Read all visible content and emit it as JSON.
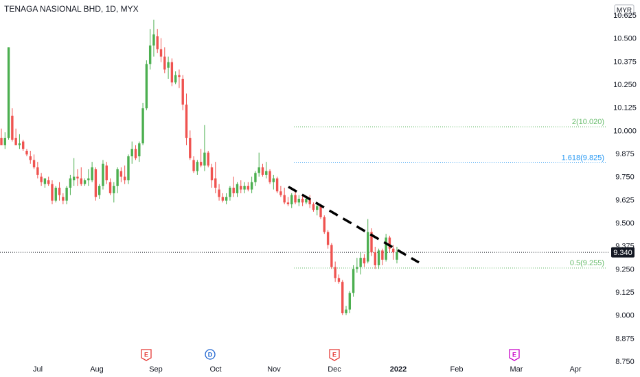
{
  "header": {
    "title": "TENAGA NASIONAL BHD, 1D, MYX"
  },
  "chart_data": {
    "type": "candlestick",
    "title": "TENAGA NASIONAL BHD, 1D, MYX",
    "currency": "MYR",
    "y_axis": {
      "min": 8.75,
      "max": 10.625,
      "ticks": [
        "10.625",
        "10.500",
        "10.375",
        "10.250",
        "10.125",
        "10.000",
        "9.875",
        "9.750",
        "9.625",
        "9.500",
        "9.375",
        "9.250",
        "9.125",
        "9.000",
        "8.875",
        "8.750"
      ]
    },
    "x_axis": {
      "labels": [
        "Jul",
        "Aug",
        "Sep",
        "Oct",
        "Nov",
        "Dec",
        "2022",
        "Feb",
        "Mar",
        "Apr"
      ],
      "bold": [
        "2022"
      ]
    },
    "last_price": {
      "value": 9.34,
      "label": "9.340",
      "color": "#131722"
    },
    "fib_levels": [
      {
        "value": 10.02,
        "label": "2(10.020)",
        "color": "#66bb6a"
      },
      {
        "value": 9.825,
        "label": "1.618(9.825)",
        "color": "#2196f3"
      },
      {
        "value": 9.255,
        "label": "0.5(9.255)",
        "color": "#66bb6a"
      }
    ],
    "trendline": {
      "start": {
        "date": "Nov 9",
        "value": 9.695
      },
      "end": {
        "date": "Jan 7",
        "value": 9.285
      },
      "style": "dashed",
      "color": "#000000"
    },
    "events": [
      {
        "date": "Aug 26",
        "letter": "E",
        "color": "#e53935"
      },
      {
        "date": "Oct 4",
        "letter": "D",
        "color": "#1e64d0"
      },
      {
        "date": "Nov 29",
        "letter": "E",
        "color": "#e53935"
      },
      {
        "date": "Mar 1",
        "letter": "E",
        "color": "#c800c8"
      }
    ],
    "colors": {
      "up": "#4caf50",
      "down": "#ef5350"
    },
    "candles": [
      [
        9.96,
        10.01,
        9.93,
        9.92
      ],
      [
        9.92,
        9.99,
        9.9,
        9.96
      ],
      [
        9.96,
        10.45,
        9.95,
        10.45
      ],
      [
        10.08,
        10.12,
        9.94,
        9.95
      ],
      [
        9.96,
        10.01,
        9.92,
        9.92
      ],
      [
        9.92,
        9.98,
        9.9,
        9.93
      ],
      [
        9.94,
        9.95,
        9.89,
        9.9
      ],
      [
        9.89,
        9.9,
        9.86,
        9.87
      ],
      [
        9.86,
        9.89,
        9.82,
        9.84
      ],
      [
        9.84,
        9.87,
        9.79,
        9.8
      ],
      [
        9.8,
        9.83,
        9.74,
        9.76
      ],
      [
        9.75,
        9.77,
        9.7,
        9.72
      ],
      [
        9.71,
        9.74,
        9.69,
        9.74
      ],
      [
        9.73,
        9.75,
        9.7,
        9.71
      ],
      [
        9.71,
        9.73,
        9.6,
        9.62
      ],
      [
        9.62,
        9.7,
        9.61,
        9.69
      ],
      [
        9.69,
        9.72,
        9.62,
        9.65
      ],
      [
        9.64,
        9.66,
        9.6,
        9.62
      ],
      [
        9.62,
        9.7,
        9.6,
        9.69
      ],
      [
        9.69,
        9.76,
        9.65,
        9.74
      ],
      [
        9.73,
        9.85,
        9.7,
        9.75
      ],
      [
        9.75,
        9.79,
        9.7,
        9.74
      ],
      [
        9.74,
        9.8,
        9.7,
        9.71
      ],
      [
        9.71,
        9.74,
        9.7,
        9.73
      ],
      [
        9.73,
        9.79,
        9.7,
        9.74
      ],
      [
        9.73,
        9.83,
        9.72,
        9.8
      ],
      [
        9.79,
        9.8,
        9.62,
        9.64
      ],
      [
        9.65,
        9.71,
        9.63,
        9.7
      ],
      [
        9.7,
        9.84,
        9.68,
        9.82
      ],
      [
        9.81,
        9.83,
        9.71,
        9.73
      ],
      [
        9.72,
        9.74,
        9.65,
        9.66
      ],
      [
        9.66,
        9.72,
        9.61,
        9.7
      ],
      [
        9.7,
        9.8,
        9.66,
        9.79
      ],
      [
        9.78,
        9.8,
        9.72,
        9.75
      ],
      [
        9.75,
        9.81,
        9.71,
        9.73
      ],
      [
        9.73,
        9.87,
        9.71,
        9.86
      ],
      [
        9.86,
        9.94,
        9.82,
        9.9
      ],
      [
        9.9,
        9.92,
        9.84,
        9.85
      ],
      [
        9.86,
        9.94,
        9.83,
        9.93
      ],
      [
        9.93,
        10.15,
        9.92,
        10.12
      ],
      [
        10.12,
        10.38,
        10.11,
        10.36
      ],
      [
        10.36,
        10.55,
        10.33,
        10.46
      ],
      [
        10.46,
        10.6,
        10.4,
        10.52
      ],
      [
        10.51,
        10.55,
        10.42,
        10.44
      ],
      [
        10.44,
        10.5,
        10.37,
        10.4
      ],
      [
        10.4,
        10.45,
        10.31,
        10.33
      ],
      [
        10.34,
        10.4,
        10.28,
        10.37
      ],
      [
        10.37,
        10.39,
        10.24,
        10.26
      ],
      [
        10.26,
        10.32,
        10.25,
        10.3
      ],
      [
        10.3,
        10.33,
        10.23,
        10.29
      ],
      [
        10.28,
        10.3,
        10.11,
        10.14
      ],
      [
        10.14,
        10.2,
        9.92,
        9.96
      ],
      [
        9.96,
        10.0,
        9.84,
        9.85
      ],
      [
        9.84,
        9.86,
        9.77,
        9.78
      ],
      [
        9.78,
        9.84,
        9.76,
        9.83
      ],
      [
        9.83,
        9.9,
        9.8,
        9.81
      ],
      [
        9.81,
        10.03,
        9.78,
        9.88
      ],
      [
        9.88,
        9.89,
        9.8,
        9.81
      ],
      [
        9.8,
        9.82,
        9.69,
        9.73
      ],
      [
        9.74,
        9.83,
        9.66,
        9.69
      ],
      [
        9.68,
        9.71,
        9.62,
        9.64
      ],
      [
        9.64,
        9.66,
        9.61,
        9.62
      ],
      [
        9.62,
        9.66,
        9.6,
        9.64
      ],
      [
        9.64,
        9.7,
        9.62,
        9.69
      ],
      [
        9.69,
        9.75,
        9.64,
        9.66
      ],
      [
        9.66,
        9.72,
        9.64,
        9.71
      ],
      [
        9.7,
        9.73,
        9.66,
        9.68
      ],
      [
        9.68,
        9.72,
        9.66,
        9.7
      ],
      [
        9.7,
        9.72,
        9.67,
        9.68
      ],
      [
        9.68,
        9.75,
        9.66,
        9.72
      ],
      [
        9.72,
        9.78,
        9.7,
        9.77
      ],
      [
        9.77,
        9.88,
        9.75,
        9.8
      ],
      [
        9.8,
        9.82,
        9.75,
        9.76
      ],
      [
        9.76,
        9.83,
        9.74,
        9.78
      ],
      [
        9.78,
        9.79,
        9.71,
        9.72
      ],
      [
        9.72,
        9.76,
        9.68,
        9.74
      ],
      [
        9.74,
        9.75,
        9.66,
        9.67
      ],
      [
        9.67,
        9.7,
        9.64,
        9.65
      ],
      [
        9.65,
        9.69,
        9.6,
        9.61
      ],
      [
        9.61,
        9.64,
        9.59,
        9.6
      ],
      [
        9.6,
        9.66,
        9.58,
        9.65
      ],
      [
        9.65,
        9.68,
        9.6,
        9.61
      ],
      [
        9.61,
        9.65,
        9.59,
        9.63
      ],
      [
        9.63,
        9.65,
        9.59,
        9.61
      ],
      [
        9.61,
        9.64,
        9.6,
        9.63
      ],
      [
        9.63,
        9.65,
        9.58,
        9.6
      ],
      [
        9.6,
        9.61,
        9.56,
        9.57
      ],
      [
        9.57,
        9.61,
        9.54,
        9.59
      ],
      [
        9.59,
        9.6,
        9.52,
        9.53
      ],
      [
        9.53,
        9.54,
        9.44,
        9.45
      ],
      [
        9.45,
        9.46,
        9.36,
        9.38
      ],
      [
        9.38,
        9.39,
        9.25,
        9.26
      ],
      [
        9.26,
        9.29,
        9.18,
        9.2
      ],
      [
        9.2,
        9.22,
        9.17,
        9.18
      ],
      [
        9.18,
        9.19,
        9.0,
        9.01
      ],
      [
        9.01,
        9.05,
        9.0,
        9.03
      ],
      [
        9.03,
        9.13,
        9.01,
        9.12
      ],
      [
        9.12,
        9.27,
        9.1,
        9.25
      ],
      [
        9.25,
        9.31,
        9.23,
        9.26
      ],
      [
        9.26,
        9.34,
        9.22,
        9.31
      ],
      [
        9.31,
        9.33,
        9.26,
        9.28
      ],
      [
        9.29,
        9.52,
        9.28,
        9.45
      ],
      [
        9.45,
        9.47,
        9.32,
        9.34
      ],
      [
        9.34,
        9.37,
        9.25,
        9.27
      ],
      [
        9.27,
        9.36,
        9.25,
        9.35
      ],
      [
        9.35,
        9.36,
        9.27,
        9.3
      ],
      [
        9.3,
        9.44,
        9.29,
        9.42
      ],
      [
        9.42,
        9.43,
        9.34,
        9.36
      ],
      [
        9.36,
        9.38,
        9.3,
        9.34
      ],
      [
        9.3,
        9.37,
        9.28,
        9.34
      ]
    ]
  }
}
